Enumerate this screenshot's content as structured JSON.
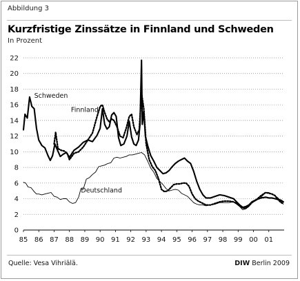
{
  "figure_label": "Abbildung 3",
  "source": "Quelle: Vesa Vihriälä.",
  "brand": {
    "bold": "DIW",
    "rest": " Berlin 2009"
  },
  "colors": {
    "rule": "#bdbdbd",
    "grid": "#7f7f7f",
    "axis": "#000000",
    "text": "#111111"
  },
  "chart_data": {
    "type": "line",
    "title": "Kurzfristige Zinssätze in Finnland und Schweden",
    "subtitle": "In Prozent",
    "xlim": [
      1985,
      2002
    ],
    "ylim": [
      0,
      22
    ],
    "yticks": [
      0,
      2,
      4,
      6,
      8,
      10,
      12,
      14,
      16,
      18,
      20,
      22
    ],
    "xtick_labels": [
      "85",
      "86",
      "87",
      "88",
      "89",
      "90",
      "91",
      "92",
      "93",
      "94",
      "95",
      "96",
      "97",
      "98",
      "99",
      "00",
      "01"
    ],
    "grid": "horizontal dotted",
    "series": [
      {
        "name": "Schweden",
        "style": "solid-bold",
        "points": [
          [
            1985.0,
            12.8
          ],
          [
            1985.1,
            14.8
          ],
          [
            1985.25,
            14.3
          ],
          [
            1985.4,
            17.0
          ],
          [
            1985.55,
            15.8
          ],
          [
            1985.7,
            15.5
          ],
          [
            1985.85,
            13.0
          ],
          [
            1986.0,
            11.5
          ],
          [
            1986.2,
            10.8
          ],
          [
            1986.4,
            10.5
          ],
          [
            1986.6,
            9.5
          ],
          [
            1986.75,
            8.9
          ],
          [
            1986.9,
            9.5
          ],
          [
            1987.05,
            11.0
          ],
          [
            1987.2,
            10.3
          ],
          [
            1987.4,
            9.4
          ],
          [
            1987.6,
            9.7
          ],
          [
            1987.8,
            9.9
          ],
          [
            1988.0,
            9.3
          ],
          [
            1988.3,
            10.2
          ],
          [
            1988.6,
            10.6
          ],
          [
            1988.9,
            11.2
          ],
          [
            1989.2,
            11.5
          ],
          [
            1989.5,
            11.3
          ],
          [
            1989.8,
            12.1
          ],
          [
            1990.0,
            13.0
          ],
          [
            1990.15,
            15.5
          ],
          [
            1990.3,
            13.5
          ],
          [
            1990.45,
            12.9
          ],
          [
            1990.6,
            13.2
          ],
          [
            1990.75,
            14.7
          ],
          [
            1990.9,
            15.0
          ],
          [
            1991.05,
            14.5
          ],
          [
            1991.2,
            11.8
          ],
          [
            1991.35,
            10.8
          ],
          [
            1991.55,
            11.0
          ],
          [
            1991.75,
            12.0
          ],
          [
            1991.9,
            13.9
          ],
          [
            1992.05,
            11.9
          ],
          [
            1992.2,
            11.0
          ],
          [
            1992.35,
            10.8
          ],
          [
            1992.5,
            11.5
          ],
          [
            1992.6,
            13.5
          ],
          [
            1992.7,
            21.7
          ],
          [
            1992.75,
            13.5
          ],
          [
            1992.85,
            15.2
          ],
          [
            1992.95,
            12.0
          ],
          [
            1993.1,
            10.8
          ],
          [
            1993.3,
            9.5
          ],
          [
            1993.5,
            8.8
          ],
          [
            1993.7,
            8.0
          ],
          [
            1993.9,
            7.6
          ],
          [
            1994.1,
            7.2
          ],
          [
            1994.3,
            7.3
          ],
          [
            1994.5,
            7.6
          ],
          [
            1994.7,
            8.1
          ],
          [
            1994.9,
            8.5
          ],
          [
            1995.1,
            8.8
          ],
          [
            1995.3,
            9.0
          ],
          [
            1995.5,
            9.2
          ],
          [
            1995.7,
            8.8
          ],
          [
            1995.9,
            8.5
          ],
          [
            1996.1,
            7.5
          ],
          [
            1996.3,
            6.2
          ],
          [
            1996.5,
            5.2
          ],
          [
            1996.7,
            4.5
          ],
          [
            1996.9,
            4.1
          ],
          [
            1997.2,
            4.1
          ],
          [
            1997.5,
            4.3
          ],
          [
            1997.8,
            4.5
          ],
          [
            1998.1,
            4.4
          ],
          [
            1998.4,
            4.2
          ],
          [
            1998.7,
            4.0
          ],
          [
            1998.9,
            3.6
          ],
          [
            1999.1,
            3.2
          ],
          [
            1999.3,
            2.9
          ],
          [
            1999.5,
            3.0
          ],
          [
            1999.7,
            3.2
          ],
          [
            1999.9,
            3.6
          ],
          [
            2000.2,
            3.9
          ],
          [
            2000.5,
            4.1
          ],
          [
            2000.8,
            4.2
          ],
          [
            2001.0,
            4.1
          ],
          [
            2001.2,
            4.1
          ],
          [
            2001.4,
            4.0
          ],
          [
            2001.6,
            3.9
          ],
          [
            2001.8,
            3.8
          ],
          [
            2001.95,
            3.6
          ]
        ]
      },
      {
        "name": "Finnland",
        "style": "dotted-bold",
        "points": [
          [
            1987.0,
            11.0
          ],
          [
            1987.1,
            12.5
          ],
          [
            1987.25,
            10.4
          ],
          [
            1987.45,
            10.2
          ],
          [
            1987.65,
            10.1
          ],
          [
            1987.85,
            9.8
          ],
          [
            1988.0,
            9.0
          ],
          [
            1988.3,
            9.8
          ],
          [
            1988.6,
            10.0
          ],
          [
            1988.9,
            10.6
          ],
          [
            1989.2,
            11.5
          ],
          [
            1989.5,
            12.4
          ],
          [
            1989.8,
            14.5
          ],
          [
            1990.0,
            15.8
          ],
          [
            1990.15,
            16.0
          ],
          [
            1990.3,
            15.0
          ],
          [
            1990.45,
            14.2
          ],
          [
            1990.6,
            13.8
          ],
          [
            1990.75,
            14.2
          ],
          [
            1990.9,
            14.0
          ],
          [
            1991.1,
            13.2
          ],
          [
            1991.3,
            12.0
          ],
          [
            1991.5,
            11.8
          ],
          [
            1991.7,
            13.0
          ],
          [
            1991.9,
            14.5
          ],
          [
            1992.05,
            14.8
          ],
          [
            1992.2,
            13.2
          ],
          [
            1992.4,
            12.2
          ],
          [
            1992.55,
            12.8
          ],
          [
            1992.7,
            17.5
          ],
          [
            1992.85,
            15.5
          ],
          [
            1993.0,
            11.0
          ],
          [
            1993.2,
            9.0
          ],
          [
            1993.4,
            8.1
          ],
          [
            1993.6,
            7.6
          ],
          [
            1993.8,
            6.6
          ],
          [
            1994.0,
            5.2
          ],
          [
            1994.2,
            4.9
          ],
          [
            1994.4,
            5.0
          ],
          [
            1994.6,
            5.4
          ],
          [
            1994.8,
            5.8
          ],
          [
            1995.0,
            5.9
          ],
          [
            1995.2,
            5.9
          ],
          [
            1995.4,
            6.0
          ],
          [
            1995.6,
            6.0
          ],
          [
            1995.8,
            5.6
          ],
          [
            1996.0,
            4.6
          ],
          [
            1996.2,
            4.0
          ],
          [
            1996.4,
            3.7
          ],
          [
            1996.6,
            3.5
          ],
          [
            1996.9,
            3.2
          ],
          [
            1997.2,
            3.2
          ],
          [
            1997.5,
            3.4
          ],
          [
            1997.8,
            3.6
          ],
          [
            1998.1,
            3.7
          ],
          [
            1998.4,
            3.7
          ],
          [
            1998.7,
            3.6
          ],
          [
            1998.9,
            3.4
          ],
          [
            1999.1,
            3.1
          ],
          [
            1999.3,
            2.8
          ],
          [
            1999.5,
            2.8
          ],
          [
            1999.7,
            3.1
          ],
          [
            1999.9,
            3.5
          ],
          [
            2000.2,
            3.9
          ],
          [
            2000.5,
            4.4
          ],
          [
            2000.8,
            4.8
          ],
          [
            2001.0,
            4.7
          ],
          [
            2001.2,
            4.6
          ],
          [
            2001.4,
            4.4
          ],
          [
            2001.6,
            3.9
          ],
          [
            2001.8,
            3.5
          ],
          [
            2001.95,
            3.4
          ]
        ]
      },
      {
        "name": "Deutschland",
        "style": "solid-thin",
        "points": [
          [
            1985.0,
            6.1
          ],
          [
            1985.15,
            6.0
          ],
          [
            1985.3,
            5.5
          ],
          [
            1985.5,
            5.4
          ],
          [
            1985.7,
            4.9
          ],
          [
            1985.85,
            4.6
          ],
          [
            1986.0,
            4.6
          ],
          [
            1986.2,
            4.5
          ],
          [
            1986.4,
            4.6
          ],
          [
            1986.6,
            4.7
          ],
          [
            1986.8,
            4.8
          ],
          [
            1987.0,
            4.3
          ],
          [
            1987.2,
            4.2
          ],
          [
            1987.4,
            3.9
          ],
          [
            1987.6,
            4.0
          ],
          [
            1987.8,
            4.0
          ],
          [
            1988.0,
            3.6
          ],
          [
            1988.2,
            3.4
          ],
          [
            1988.4,
            3.5
          ],
          [
            1988.6,
            4.2
          ],
          [
            1988.75,
            5.3
          ],
          [
            1988.9,
            5.2
          ],
          [
            1989.1,
            6.5
          ],
          [
            1989.3,
            6.7
          ],
          [
            1989.5,
            7.1
          ],
          [
            1989.7,
            7.4
          ],
          [
            1989.9,
            8.1
          ],
          [
            1990.1,
            8.2
          ],
          [
            1990.3,
            8.3
          ],
          [
            1990.5,
            8.5
          ],
          [
            1990.7,
            8.6
          ],
          [
            1990.9,
            9.2
          ],
          [
            1991.1,
            9.3
          ],
          [
            1991.3,
            9.2
          ],
          [
            1991.5,
            9.3
          ],
          [
            1991.7,
            9.4
          ],
          [
            1991.9,
            9.6
          ],
          [
            1992.1,
            9.6
          ],
          [
            1992.3,
            9.7
          ],
          [
            1992.5,
            9.8
          ],
          [
            1992.7,
            9.9
          ],
          [
            1992.9,
            9.6
          ],
          [
            1993.1,
            8.8
          ],
          [
            1993.3,
            7.9
          ],
          [
            1993.5,
            7.4
          ],
          [
            1993.7,
            6.6
          ],
          [
            1993.9,
            6.2
          ],
          [
            1994.1,
            5.8
          ],
          [
            1994.3,
            5.3
          ],
          [
            1994.5,
            5.0
          ],
          [
            1994.7,
            5.1
          ],
          [
            1994.9,
            5.2
          ],
          [
            1995.1,
            5.1
          ],
          [
            1995.3,
            4.7
          ],
          [
            1995.5,
            4.5
          ],
          [
            1995.7,
            4.3
          ],
          [
            1995.9,
            3.9
          ],
          [
            1996.1,
            3.5
          ],
          [
            1996.3,
            3.3
          ],
          [
            1996.5,
            3.2
          ],
          [
            1996.7,
            3.2
          ],
          [
            1996.9,
            3.1
          ],
          [
            1997.2,
            3.2
          ],
          [
            1997.5,
            3.3
          ],
          [
            1997.8,
            3.5
          ],
          [
            1998.1,
            3.5
          ],
          [
            1998.4,
            3.5
          ],
          [
            1998.7,
            3.6
          ],
          [
            1998.9,
            3.3
          ],
          [
            1999.1,
            3.0
          ],
          [
            1999.3,
            2.6
          ],
          [
            1999.5,
            2.7
          ],
          [
            1999.7,
            3.0
          ],
          [
            1999.9,
            3.5
          ],
          [
            2000.2,
            3.8
          ],
          [
            2000.5,
            4.2
          ],
          [
            2000.8,
            4.8
          ],
          [
            2001.0,
            4.8
          ],
          [
            2001.2,
            4.6
          ],
          [
            2001.4,
            4.4
          ],
          [
            2001.6,
            4.1
          ],
          [
            2001.8,
            3.7
          ],
          [
            2001.95,
            3.3
          ]
        ]
      }
    ],
    "annotations": [
      {
        "text": "Schweden",
        "x": 1985.7,
        "y": 16.9
      },
      {
        "text": "Finnland",
        "x": 1988.1,
        "y": 15.1
      },
      {
        "text": "Deutschland",
        "x": 1988.75,
        "y": 4.8
      }
    ]
  }
}
